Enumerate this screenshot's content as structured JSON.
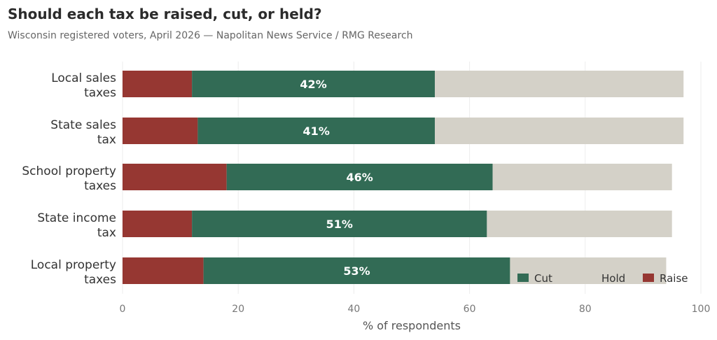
{
  "chart_data": {
    "type": "bar",
    "orientation": "horizontal",
    "stacked": true,
    "title": "Should each tax be raised, cut, or held?",
    "subtitle": "Wisconsin registered voters, April 2026 — Napolitan News Service / RMG Research",
    "xlabel": "% of respondents",
    "ylabel": "",
    "xlim": [
      0,
      100
    ],
    "xticks": [
      0,
      20,
      40,
      60,
      80,
      100
    ],
    "grid": true,
    "legend_position": "bottom-right",
    "categories": [
      [
        "Local sales",
        "taxes"
      ],
      [
        "State sales",
        "tax"
      ],
      [
        "School property",
        "taxes"
      ],
      [
        "State income",
        "tax"
      ],
      [
        "Local property",
        "taxes"
      ]
    ],
    "series": [
      {
        "name": "Raise",
        "color": "#963732",
        "values": [
          12,
          13,
          18,
          12,
          14
        ]
      },
      {
        "name": "Cut",
        "color": "#326b55",
        "values": [
          42,
          41,
          46,
          51,
          53
        ]
      },
      {
        "name": "Hold",
        "color": "#d4d1c8",
        "values": [
          43,
          43,
          31,
          32,
          27
        ]
      }
    ],
    "data_labels": [
      "42%",
      "41%",
      "46%",
      "51%",
      "53%"
    ],
    "legend": [
      {
        "name": "Cut",
        "color": "#326b55"
      },
      {
        "name": "Hold",
        "color": "#d4d1c8"
      },
      {
        "name": "Raise",
        "color": "#963732"
      }
    ]
  }
}
